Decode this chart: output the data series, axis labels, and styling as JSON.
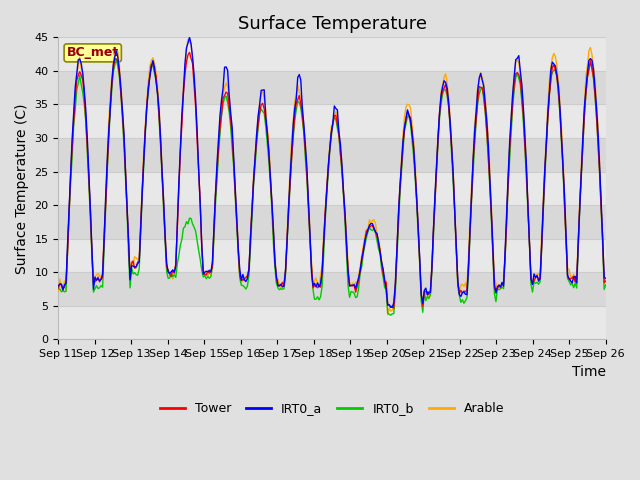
{
  "title": "Surface Temperature",
  "ylabel": "Surface Temperature (C)",
  "xlabel": "Time",
  "ylim": [
    0,
    45
  ],
  "yticks": [
    0,
    5,
    10,
    15,
    20,
    25,
    30,
    35,
    40,
    45
  ],
  "x_tick_labels": [
    "Sep 11",
    "Sep 12",
    "Sep 13",
    "Sep 14",
    "Sep 15",
    "Sep 16",
    "Sep 17",
    "Sep 18",
    "Sep 19",
    "Sep 20",
    "Sep 21",
    "Sep 22",
    "Sep 23",
    "Sep 24",
    "Sep 25",
    "Sep 26"
  ],
  "colors": {
    "Tower": "#ff0000",
    "IRT0_a": "#0000ff",
    "IRT0_b": "#00cc00",
    "Arable": "#ffaa00"
  },
  "band_colors": [
    "#e8e8e8",
    "#d8d8d8"
  ],
  "annotation_text": "BC_met",
  "annotation_color": "#990000",
  "annotation_bg": "#ffff99",
  "annotation_border": "#888800",
  "bg_color": "#e0e0e0",
  "title_fontsize": 13,
  "axis_label_fontsize": 10,
  "tick_fontsize": 8,
  "legend_fontsize": 9,
  "linewidth": 1.0
}
